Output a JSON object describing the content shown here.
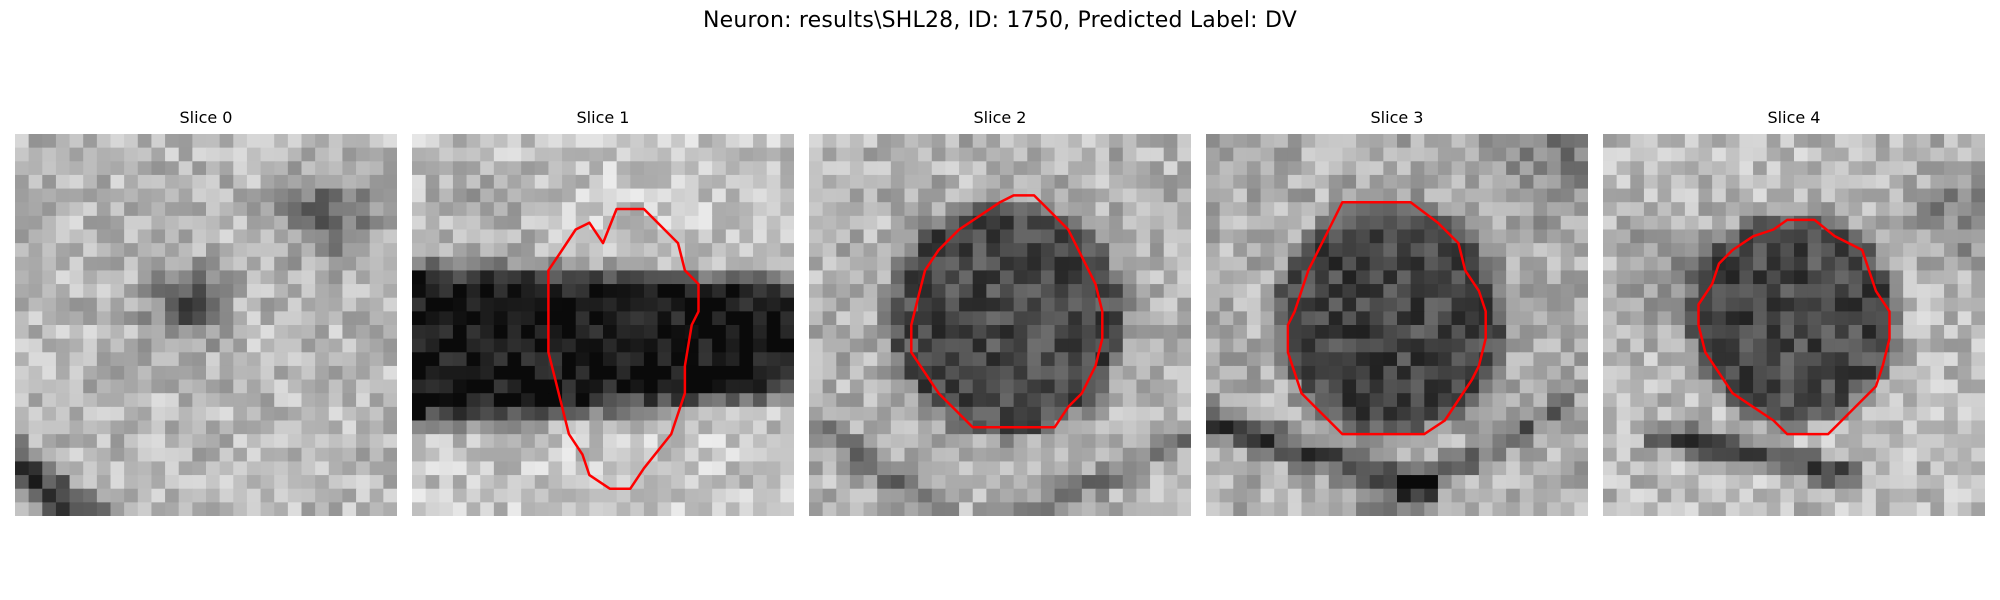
{
  "figure": {
    "title": "Neuron: results\\SHL28, ID: 1750, Predicted Label: DV"
  },
  "panels": [
    {
      "title": "Slice 0",
      "has_contour": false
    },
    {
      "title": "Slice 1",
      "has_contour": true
    },
    {
      "title": "Slice 2",
      "has_contour": true
    },
    {
      "title": "Slice 3",
      "has_contour": true
    },
    {
      "title": "Slice 4",
      "has_contour": true
    }
  ],
  "colors": {
    "contour": "#ff0000",
    "colormap": "gray"
  }
}
